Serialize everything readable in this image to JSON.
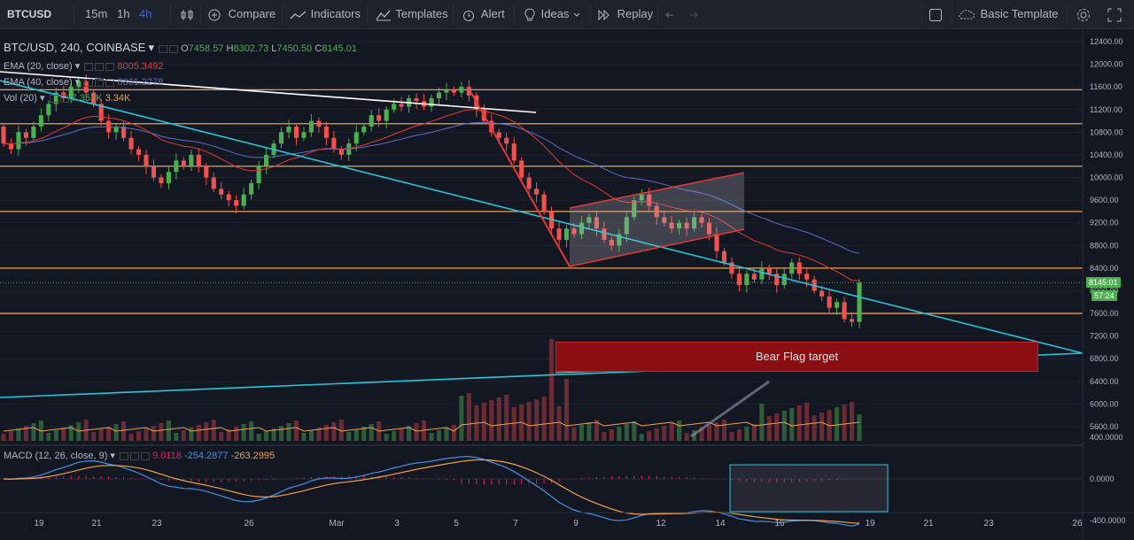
{
  "toolbar": {
    "symbol": "BTCUSD",
    "intervals": [
      "15m",
      "1h",
      "4h"
    ],
    "active_interval": "4h",
    "compare": "Compare",
    "indicators": "Indicators",
    "templates": "Templates",
    "alert": "Alert",
    "ideas": "Ideas",
    "replay": "Replay",
    "basic_template": "Basic Template"
  },
  "legend": {
    "title": "BTC/USD, 240, COINBASE",
    "open_label": "O",
    "open": "7458.57",
    "high_label": "H",
    "high": "8302.73",
    "low_label": "L",
    "low": "7450.50",
    "close_label": "C",
    "close": "8145.01",
    "ema20_label": "EMA (20, close)",
    "ema20_value": "8005.3492",
    "ema40_label": "EMA (40, close)",
    "ema40_value": "8361.2278",
    "vol_label": "Vol (20)",
    "vol_value1": "7.352K",
    "vol_value2": "3.34K"
  },
  "macd": {
    "label": "MACD (12, 26, close, 9)",
    "v1": "9.0118",
    "v2": "-254.2877",
    "v3": "-263.2995",
    "axis": [
      "400.0000",
      "0.0000",
      "-400.0000"
    ]
  },
  "annotation": {
    "bear_flag": "Bear Flag target"
  },
  "price_tags": {
    "last": "8145.01",
    "countdown": "57:24"
  },
  "colors": {
    "background": "#131722",
    "up": "#4caf50",
    "down": "#ef5350",
    "ema20": "#e53935",
    "ema40": "#5b6fc9",
    "support": "#f0a04b",
    "trendline": "#26c6da"
  },
  "chart_data": {
    "type": "candlestick",
    "price_axis": {
      "range": [
        5400,
        12500
      ],
      "ticks": [
        12400,
        12000,
        11600,
        11200,
        10800,
        10400,
        10000,
        9600,
        9200,
        8800,
        8400,
        8000,
        7600,
        7200,
        6800,
        6400,
        6000,
        5600
      ]
    },
    "x_tick_labels": [
      "19",
      "21",
      "23",
      "26",
      "Mar",
      "3",
      "5",
      "7",
      "9",
      "12",
      "14",
      "16",
      "19",
      "21",
      "23",
      "26"
    ],
    "horizontal_levels": [
      11550,
      10950,
      10200,
      9400,
      8400,
      7600
    ],
    "last_price": 8145.01,
    "candles": [
      [
        10900,
        10600
      ],
      [
        10600,
        10500
      ],
      [
        10500,
        10800
      ],
      [
        10800,
        10700
      ],
      [
        10700,
        10900
      ],
      [
        10900,
        11100
      ],
      [
        11100,
        11300
      ],
      [
        11300,
        11500
      ],
      [
        11500,
        11400
      ],
      [
        11400,
        11600
      ],
      [
        11600,
        11700
      ],
      [
        11700,
        11500
      ],
      [
        11500,
        11300
      ],
      [
        11300,
        11000
      ],
      [
        11000,
        10800
      ],
      [
        10800,
        10900
      ],
      [
        10900,
        10700
      ],
      [
        10700,
        10500
      ],
      [
        10500,
        10400
      ],
      [
        10400,
        10200
      ],
      [
        10200,
        10000
      ],
      [
        10000,
        9900
      ],
      [
        9900,
        10100
      ],
      [
        10100,
        10300
      ],
      [
        10300,
        10200
      ],
      [
        10200,
        10400
      ],
      [
        10400,
        10200
      ],
      [
        10200,
        10000
      ],
      [
        10000,
        9800
      ],
      [
        9800,
        9700
      ],
      [
        9700,
        9600
      ],
      [
        9600,
        9500
      ],
      [
        9500,
        9700
      ],
      [
        9700,
        9900
      ],
      [
        9900,
        10200
      ],
      [
        10200,
        10400
      ],
      [
        10400,
        10600
      ],
      [
        10600,
        10800
      ],
      [
        10800,
        10900
      ],
      [
        10900,
        10700
      ],
      [
        10700,
        10800
      ],
      [
        10800,
        11000
      ],
      [
        11000,
        10900
      ],
      [
        10900,
        10700
      ],
      [
        10700,
        10500
      ],
      [
        10500,
        10400
      ],
      [
        10400,
        10600
      ],
      [
        10600,
        10800
      ],
      [
        10800,
        10900
      ],
      [
        10900,
        11100
      ],
      [
        11100,
        11000
      ],
      [
        11000,
        11200
      ],
      [
        11200,
        11300
      ],
      [
        11300,
        11250
      ],
      [
        11250,
        11400
      ],
      [
        11400,
        11350
      ],
      [
        11350,
        11250
      ],
      [
        11250,
        11400
      ],
      [
        11400,
        11500
      ],
      [
        11500,
        11550
      ],
      [
        11550,
        11500
      ],
      [
        11500,
        11600
      ],
      [
        11600,
        11450
      ],
      [
        11450,
        11200
      ],
      [
        11200,
        11000
      ],
      [
        11000,
        10800
      ],
      [
        10800,
        10700
      ],
      [
        10700,
        10600
      ],
      [
        10600,
        10300
      ],
      [
        10300,
        10000
      ],
      [
        10000,
        9800
      ],
      [
        9800,
        9700
      ],
      [
        9700,
        9400
      ],
      [
        9400,
        9100
      ],
      [
        9100,
        8900
      ],
      [
        8900,
        9100
      ],
      [
        9100,
        9000
      ],
      [
        9000,
        9200
      ],
      [
        9200,
        9300
      ],
      [
        9300,
        9100
      ],
      [
        9100,
        8900
      ],
      [
        8900,
        8800
      ],
      [
        8800,
        9000
      ],
      [
        9000,
        9300
      ],
      [
        9300,
        9600
      ],
      [
        9600,
        9700
      ],
      [
        9700,
        9500
      ],
      [
        9500,
        9300
      ],
      [
        9300,
        9200
      ],
      [
        9200,
        9100
      ],
      [
        9100,
        9200
      ],
      [
        9200,
        9100
      ],
      [
        9100,
        9300
      ],
      [
        9300,
        9200
      ],
      [
        9200,
        9000
      ],
      [
        9000,
        8700
      ],
      [
        8700,
        8500
      ],
      [
        8500,
        8300
      ],
      [
        8300,
        8100
      ],
      [
        8100,
        8300
      ],
      [
        8300,
        8200
      ],
      [
        8200,
        8400
      ],
      [
        8400,
        8300
      ],
      [
        8300,
        8100
      ],
      [
        8100,
        8300
      ],
      [
        8300,
        8500
      ],
      [
        8500,
        8300
      ],
      [
        8300,
        8200
      ],
      [
        8200,
        8000
      ],
      [
        8000,
        7900
      ],
      [
        7900,
        7700
      ],
      [
        7700,
        7800
      ],
      [
        7800,
        7500
      ],
      [
        7500,
        7450
      ],
      [
        7450,
        8145
      ]
    ],
    "macd_axis": {
      "range": [
        -500,
        500
      ],
      "ticks": [
        400,
        0,
        -400
      ]
    }
  }
}
